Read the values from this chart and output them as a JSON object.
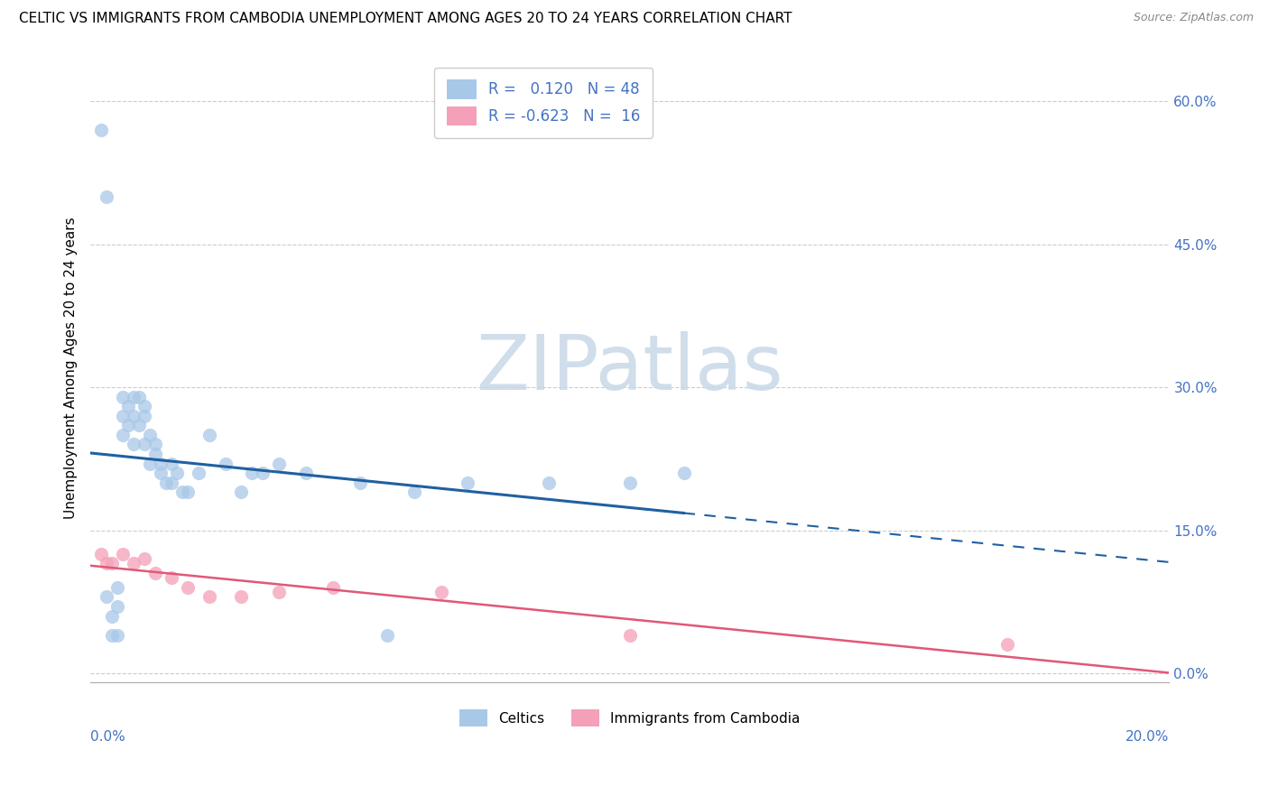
{
  "title": "CELTIC VS IMMIGRANTS FROM CAMBODIA UNEMPLOYMENT AMONG AGES 20 TO 24 YEARS CORRELATION CHART",
  "source": "Source: ZipAtlas.com",
  "ylabel": "Unemployment Among Ages 20 to 24 years",
  "xmin": 0.0,
  "xmax": 0.2,
  "ymin": -0.01,
  "ymax": 0.65,
  "yticks": [
    0.0,
    0.15,
    0.3,
    0.45,
    0.6
  ],
  "ytick_labels": [
    "0.0%",
    "15.0%",
    "30.0%",
    "45.0%",
    "60.0%"
  ],
  "legend1_r": "0.120",
  "legend1_n": "48",
  "legend2_r": "-0.623",
  "legend2_n": "16",
  "celtics_color": "#a8c8e8",
  "cambodia_color": "#f4a0b8",
  "celtics_line_color": "#2060a0",
  "cambodia_line_color": "#e05878",
  "watermark_text": "ZIPatlas",
  "celtics_x": [
    0.002,
    0.003,
    0.003,
    0.004,
    0.004,
    0.005,
    0.005,
    0.005,
    0.006,
    0.006,
    0.006,
    0.007,
    0.007,
    0.008,
    0.008,
    0.008,
    0.009,
    0.009,
    0.01,
    0.01,
    0.01,
    0.011,
    0.011,
    0.012,
    0.012,
    0.013,
    0.013,
    0.014,
    0.015,
    0.015,
    0.016,
    0.017,
    0.018,
    0.02,
    0.022,
    0.025,
    0.028,
    0.03,
    0.032,
    0.035,
    0.04,
    0.05,
    0.055,
    0.06,
    0.07,
    0.085,
    0.1,
    0.11
  ],
  "celtics_y": [
    0.57,
    0.5,
    0.08,
    0.06,
    0.04,
    0.09,
    0.07,
    0.04,
    0.27,
    0.29,
    0.25,
    0.28,
    0.26,
    0.29,
    0.27,
    0.24,
    0.29,
    0.26,
    0.28,
    0.27,
    0.24,
    0.25,
    0.22,
    0.24,
    0.23,
    0.22,
    0.21,
    0.2,
    0.22,
    0.2,
    0.21,
    0.19,
    0.19,
    0.21,
    0.25,
    0.22,
    0.19,
    0.21,
    0.21,
    0.22,
    0.21,
    0.2,
    0.04,
    0.19,
    0.2,
    0.2,
    0.2,
    0.21
  ],
  "cambodia_x": [
    0.002,
    0.003,
    0.004,
    0.006,
    0.008,
    0.01,
    0.012,
    0.015,
    0.018,
    0.022,
    0.028,
    0.035,
    0.045,
    0.065,
    0.1,
    0.17
  ],
  "cambodia_y": [
    0.125,
    0.115,
    0.115,
    0.125,
    0.115,
    0.12,
    0.105,
    0.1,
    0.09,
    0.08,
    0.08,
    0.085,
    0.09,
    0.085,
    0.04,
    0.03
  ]
}
